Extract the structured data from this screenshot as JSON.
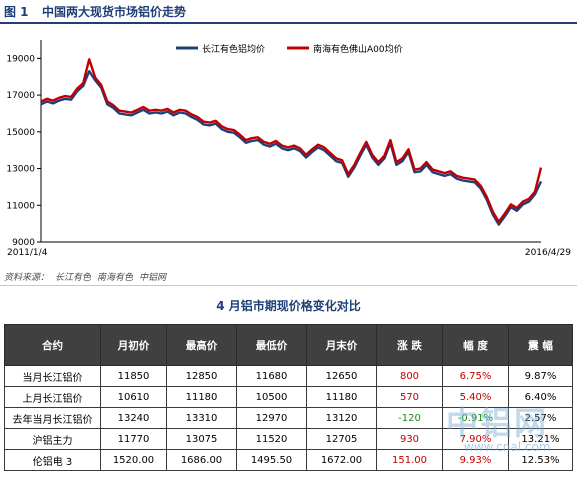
{
  "figure": {
    "number": "图 1",
    "title": "中国两大现货市场铝价走势"
  },
  "source": {
    "prefix": "资料来源：",
    "items": [
      "长江有色",
      "南海有色",
      "中铝网"
    ]
  },
  "table_title": "4 月铝市期现价格变化对比",
  "table": {
    "headers": [
      "合约",
      "月初价",
      "最高价",
      "最低价",
      "月末价",
      "涨 跌",
      "幅 度",
      "震 幅"
    ],
    "rows": [
      {
        "cells": [
          "当月长江铝价",
          "11850",
          "12850",
          "11680",
          "12650",
          "800",
          "6.75%",
          "9.87%"
        ],
        "change_color": "#c00000"
      },
      {
        "cells": [
          "上月长江铝价",
          "10610",
          "11180",
          "10500",
          "11180",
          "570",
          "5.40%",
          "6.40%"
        ],
        "change_color": "#c00000"
      },
      {
        "cells": [
          "去年当月长江铝价",
          "13240",
          "13310",
          "12970",
          "13120",
          "-120",
          "-0.91%",
          "2.57%"
        ],
        "change_color": "#1a8a1a"
      },
      {
        "cells": [
          "沪铝主力",
          "11770",
          "13075",
          "11520",
          "12705",
          "930",
          "7.90%",
          "13.21%"
        ],
        "change_color": "#c00000"
      },
      {
        "cells": [
          "伦铝电 3",
          "1520.00",
          "1686.00",
          "1495.50",
          "1672.00",
          "151.00",
          "9.93%",
          "12.53%"
        ],
        "change_color": "#c00000"
      }
    ]
  },
  "watermark": {
    "logo": "中铝网",
    "url": "www.cnal.com"
  },
  "chart_data": {
    "type": "line",
    "title": "中国两大现货市场铝价走势",
    "x_start_label": "2011/1/4",
    "x_end_label": "2016/4/29",
    "ylim": [
      9000,
      20000
    ],
    "yticks": [
      9000,
      11000,
      13000,
      15000,
      17000,
      19000
    ],
    "legend_position": "top-center",
    "grid": false,
    "series": [
      {
        "name": "长江有色铝均价",
        "color": "#1f3f78",
        "values": [
          16500,
          16650,
          16550,
          16700,
          16800,
          16750,
          17200,
          17500,
          18300,
          17800,
          17400,
          16500,
          16300,
          16000,
          15950,
          15900,
          16050,
          16200,
          16000,
          16050,
          16000,
          16100,
          15900,
          16050,
          16000,
          15800,
          15650,
          15400,
          15350,
          15450,
          15150,
          15000,
          14950,
          14700,
          14400,
          14500,
          14550,
          14300,
          14200,
          14350,
          14100,
          14000,
          14100,
          13950,
          13600,
          13900,
          14150,
          14000,
          13700,
          13400,
          13300,
          12550,
          13050,
          13700,
          14300,
          13600,
          13200,
          13550,
          14400,
          13200,
          13400,
          13900,
          12800,
          12850,
          13200,
          12800,
          12700,
          12600,
          12700,
          12450,
          12350,
          12300,
          12250,
          11900,
          11300,
          10500,
          9950,
          10400,
          10900,
          10700,
          11050,
          11200,
          11600,
          12300
        ]
      },
      {
        "name": "南海有色佛山A00均价",
        "color": "#c00000",
        "values": [
          16650,
          16800,
          16700,
          16850,
          16950,
          16900,
          17350,
          17650,
          18950,
          17950,
          17550,
          16650,
          16450,
          16150,
          16100,
          16050,
          16200,
          16350,
          16150,
          16200,
          16150,
          16250,
          16050,
          16200,
          16150,
          15950,
          15800,
          15550,
          15500,
          15600,
          15300,
          15150,
          15100,
          14850,
          14550,
          14650,
          14700,
          14450,
          14350,
          14500,
          14250,
          14150,
          14250,
          14100,
          13750,
          14050,
          14300,
          14150,
          13850,
          13550,
          13450,
          12700,
          13200,
          13850,
          14450,
          13750,
          13350,
          13700,
          14550,
          13350,
          13550,
          14050,
          12950,
          13000,
          13350,
          12950,
          12850,
          12750,
          12850,
          12600,
          12500,
          12450,
          12400,
          12050,
          11450,
          10650,
          10100,
          10550,
          11050,
          10850,
          11200,
          11350,
          11750,
          13050
        ]
      }
    ]
  }
}
